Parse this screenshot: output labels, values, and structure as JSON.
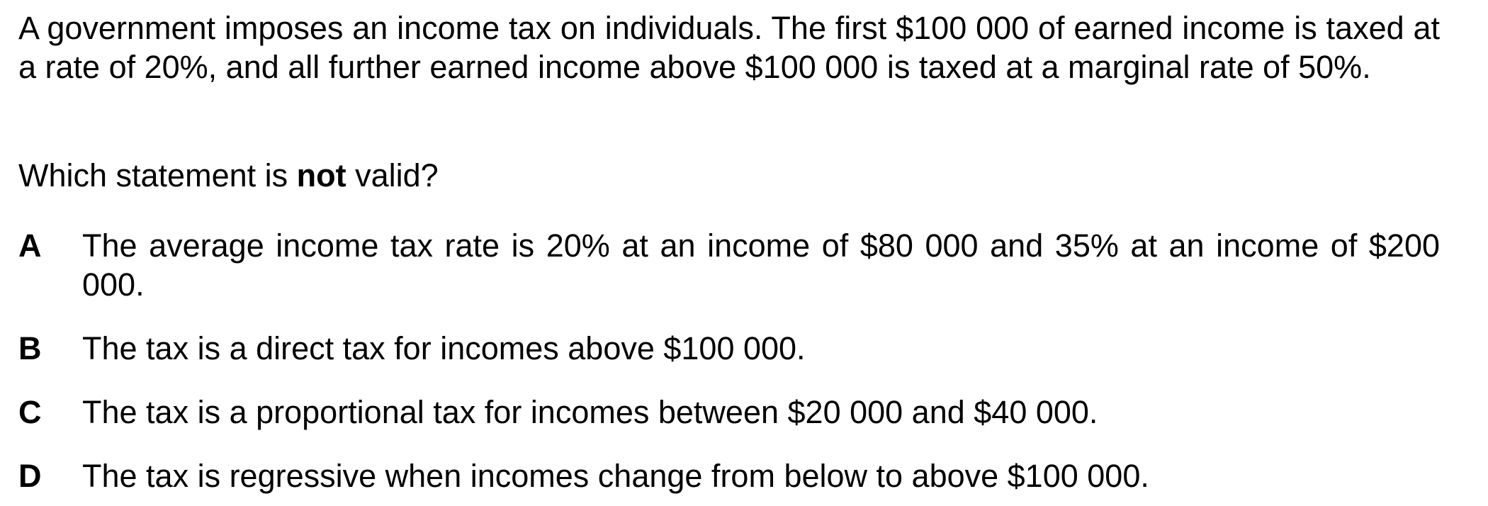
{
  "stem": "A government imposes an income tax on individuals. The first $100 000 of earned income is taxed at a rate of 20%, and all further earned income above $100 000 is taxed at a marginal rate of 50%.",
  "question": {
    "before": "Which statement is ",
    "emphasis": "not",
    "after": " valid?"
  },
  "options": [
    {
      "letter": "A",
      "text": "The average income tax rate is 20% at an income of $80 000 and 35% at an income of $200 000."
    },
    {
      "letter": "B",
      "text": "The tax is a direct tax for incomes above $100 000."
    },
    {
      "letter": "C",
      "text": "The tax is a proportional tax for incomes between $20 000 and $40 000."
    },
    {
      "letter": "D",
      "text": "The tax is regressive when incomes change from below to above $100 000."
    }
  ]
}
